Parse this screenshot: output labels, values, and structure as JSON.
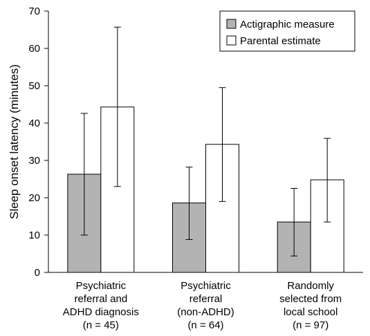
{
  "chart_data": {
    "type": "bar",
    "ylabel": "Sleep onset latency (minutes)",
    "ylim": [
      0,
      70
    ],
    "yticks": [
      0,
      10,
      20,
      30,
      40,
      50,
      60,
      70
    ],
    "grid": false,
    "legend_position": "top-right",
    "categories": [
      [
        "Psychiatric",
        "referral and",
        "ADHD diagnosis",
        "(n = 45)"
      ],
      [
        "Psychiatric",
        "referral",
        "(non-ADHD)",
        "(n = 64)"
      ],
      [
        "Randomly",
        "selected from",
        "local school",
        "(n = 97)"
      ]
    ],
    "series": [
      {
        "name": "Actigraphic measure",
        "color": "#b3b3b3",
        "values": [
          26.3,
          18.6,
          13.5
        ],
        "error_low": [
          10.0,
          8.8,
          4.4
        ],
        "error_high": [
          42.6,
          28.2,
          22.5
        ]
      },
      {
        "name": "Parental estimate",
        "color": "#ffffff",
        "values": [
          44.3,
          34.3,
          24.8
        ],
        "error_low": [
          23.0,
          19.0,
          13.5
        ],
        "error_high": [
          65.7,
          49.5,
          35.9
        ]
      }
    ]
  }
}
